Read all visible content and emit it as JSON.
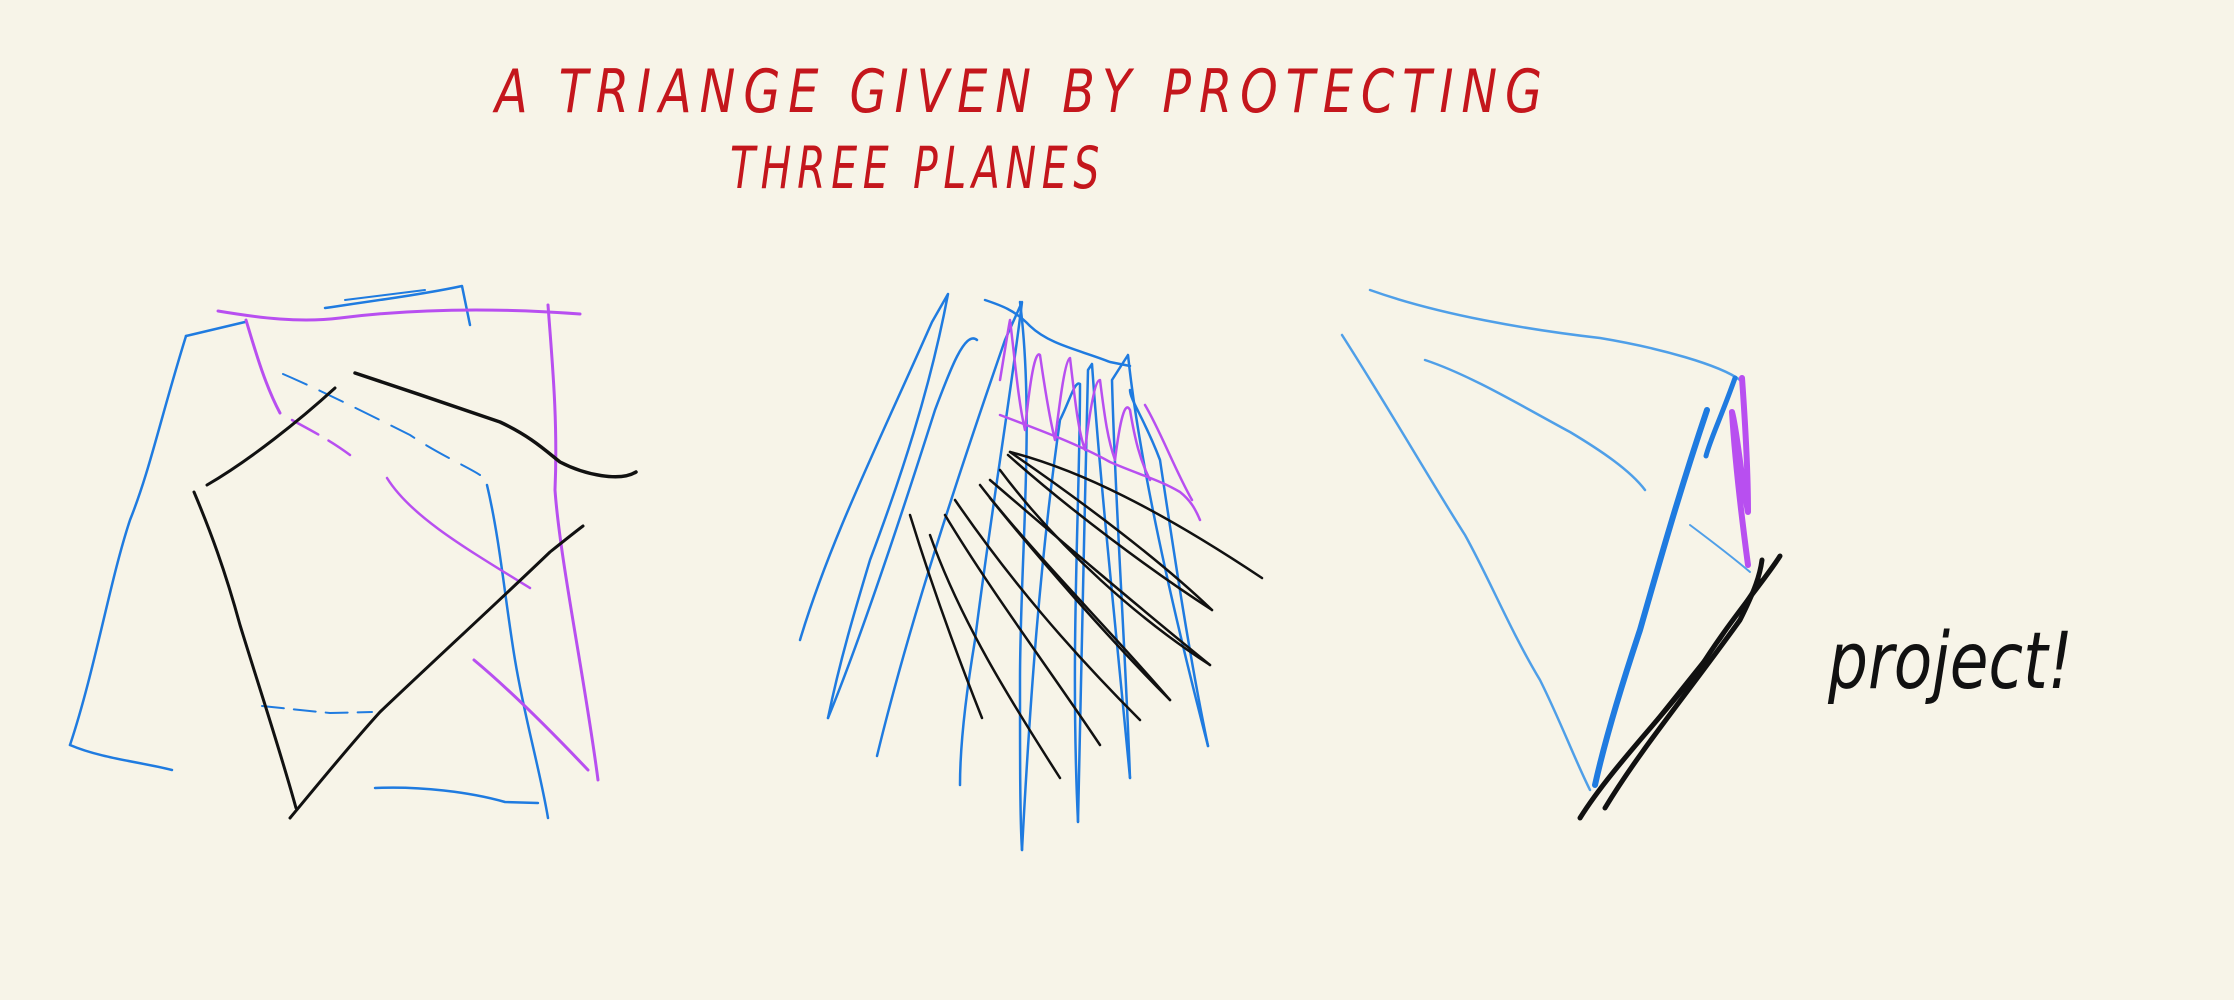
{
  "colors": {
    "background": "#f7f4e8",
    "title_red": "#c4161c",
    "blue": "#1f7be0",
    "light_blue": "#4f9fe8",
    "purple": "#b84ff0",
    "black": "#111111"
  },
  "title": {
    "line1": "A TRIANGE GIVEN BY PROTECTING",
    "line2": "THREE PLANES"
  },
  "annotation": {
    "text": "project!"
  }
}
